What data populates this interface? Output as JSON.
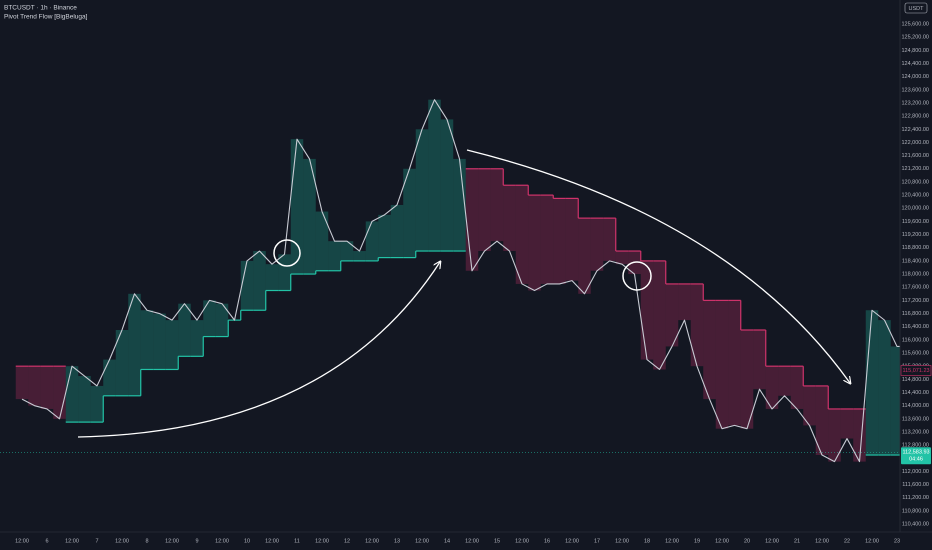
{
  "chart_data": {
    "type": "line",
    "title": "BTCUSDT · 1h · Binance",
    "subtitle": "Pivot Trend Flow [BigBeluga]",
    "currency": "USDT",
    "categories": [
      "12:00",
      null,
      "6",
      null,
      "12:00",
      null,
      "7",
      null,
      "12:00",
      null,
      "8",
      null,
      "12:00",
      null,
      "9",
      null,
      "12:00",
      null,
      "10",
      null,
      "12:00",
      null,
      "11",
      null,
      "12:00",
      null,
      "12",
      null,
      "12:00",
      null,
      "13",
      null,
      "12:00",
      null,
      "14",
      null,
      "12:00",
      null,
      "15",
      null,
      "12:00",
      null,
      "16",
      null,
      "12:00",
      null,
      "17",
      null,
      "12:00",
      null,
      "18",
      null,
      "12:00",
      null,
      "19",
      null,
      "12:00",
      null,
      "20",
      null,
      "12:00",
      null,
      "21",
      null,
      "12:00",
      null,
      "22",
      null,
      "12:00",
      null,
      "23",
      null,
      null
    ],
    "series": [
      {
        "color": "#c8cbd4",
        "values": [
          114200,
          114000,
          113900,
          113600,
          115200,
          114900,
          114600,
          115400,
          116300,
          117400,
          116900,
          116800,
          116600,
          117100,
          116600,
          117200,
          117100,
          116600,
          118400,
          118700,
          118300,
          118600,
          122100,
          121500,
          119900,
          119000,
          119000,
          118700,
          119600,
          119800,
          120100,
          121200,
          122400,
          123300,
          122700,
          121500,
          118100,
          118700,
          119000,
          118700,
          117700,
          117500,
          117700,
          117700,
          117800,
          117400,
          118100,
          118400,
          118300,
          118000,
          115400,
          115100,
          115800,
          116600,
          115200,
          114200,
          113300,
          113400,
          113300,
          114500,
          113900,
          114300,
          113900,
          113400,
          112500,
          112300,
          113000,
          112300,
          116900,
          116600,
          115800,
          115800,
          null
        ]
      },
      {
        "color": "#22c3a6",
        "values": [
          null,
          null,
          null,
          null,
          113500,
          113500,
          113500,
          114300,
          114300,
          114300,
          115100,
          115100,
          115100,
          115500,
          115500,
          116100,
          116100,
          116600,
          116900,
          116900,
          117500,
          117500,
          118000,
          118000,
          118100,
          118100,
          118400,
          118400,
          118400,
          118500,
          118500,
          118500,
          118700,
          118700,
          118700,
          118700,
          null,
          null,
          null,
          null,
          null,
          null,
          null,
          null,
          null,
          null,
          null,
          null,
          null,
          null,
          null,
          null,
          null,
          null,
          null,
          null,
          null,
          null,
          null,
          null,
          null,
          null,
          null,
          null,
          null,
          null,
          null,
          null,
          112500,
          112500,
          112500,
          112500,
          112500
        ]
      },
      {
        "color": "#d0336b",
        "values": [
          115200,
          115200,
          115200,
          115200,
          null,
          null,
          null,
          null,
          null,
          null,
          null,
          null,
          null,
          null,
          null,
          null,
          null,
          null,
          null,
          null,
          null,
          null,
          null,
          null,
          null,
          null,
          null,
          null,
          null,
          null,
          null,
          null,
          null,
          null,
          null,
          null,
          121200,
          121200,
          121200,
          120700,
          120700,
          120400,
          120400,
          120300,
          120300,
          119700,
          119700,
          119700,
          118700,
          118700,
          118400,
          118400,
          117700,
          117700,
          117700,
          117200,
          117200,
          117200,
          116300,
          116300,
          115200,
          115200,
          115200,
          114600,
          114600,
          113900,
          113900,
          113900,
          null,
          null,
          null,
          null,
          null
        ]
      }
    ],
    "ylim": [
      110160,
      126330
    ],
    "yticks": [
      {
        "value": 125600,
        "label": "125,600.00"
      },
      {
        "value": 125200,
        "label": "125,200.00"
      },
      {
        "value": 124800,
        "label": "124,800.00"
      },
      {
        "value": 124400,
        "label": "124,400.00"
      },
      {
        "value": 124000,
        "label": "124,000.00"
      },
      {
        "value": 123600,
        "label": "123,600.00"
      },
      {
        "value": 123200,
        "label": "123,200.00"
      },
      {
        "value": 122800,
        "label": "122,800.00"
      },
      {
        "value": 122400,
        "label": "122,400.00"
      },
      {
        "value": 122000,
        "label": "122,000.00"
      },
      {
        "value": 121600,
        "label": "121,600.00"
      },
      {
        "value": 121200,
        "label": "121,200.00"
      },
      {
        "value": 120800,
        "label": "120,800.00"
      },
      {
        "value": 120400,
        "label": "120,400.00"
      },
      {
        "value": 120000,
        "label": "120,000.00"
      },
      {
        "value": 119600,
        "label": "119,600.00"
      },
      {
        "value": 119200,
        "label": "119,200.00"
      },
      {
        "value": 118800,
        "label": "118,800.00"
      },
      {
        "value": 118400,
        "label": "118,400.00"
      },
      {
        "value": 118000,
        "label": "118,000.00"
      },
      {
        "value": 117600,
        "label": "117,600.00"
      },
      {
        "value": 117200,
        "label": "117,200.00"
      },
      {
        "value": 116800,
        "label": "116,800.00"
      },
      {
        "value": 116400,
        "label": "116,400.00"
      },
      {
        "value": 116000,
        "label": "116,000.00"
      },
      {
        "value": 115600,
        "label": "115,600.00"
      },
      {
        "value": 115200,
        "label": "115,200.00"
      },
      {
        "value": 114800,
        "label": "114,800.00"
      },
      {
        "value": 114400,
        "label": "114,400.00"
      },
      {
        "value": 114000,
        "label": "114,000.00"
      },
      {
        "value": 113600,
        "label": "113,600.00"
      },
      {
        "value": 113200,
        "label": "113,200.00"
      },
      {
        "value": 112800,
        "label": "112,800.00"
      },
      {
        "value": 112400,
        "label": "112,400.00"
      },
      {
        "value": 112000,
        "label": "112,000.00"
      },
      {
        "value": 111600,
        "label": "111,600.00"
      },
      {
        "value": 111200,
        "label": "111,200.00"
      },
      {
        "value": 110800,
        "label": "110,800.00"
      },
      {
        "value": 110400,
        "label": "110,400.00"
      }
    ],
    "grid": false,
    "marker_price": {
      "value": 115071.23,
      "label": "115,071.23"
    },
    "last_price": {
      "value": 112583.93,
      "label": "112,583.93"
    },
    "countdown": "04:46"
  }
}
